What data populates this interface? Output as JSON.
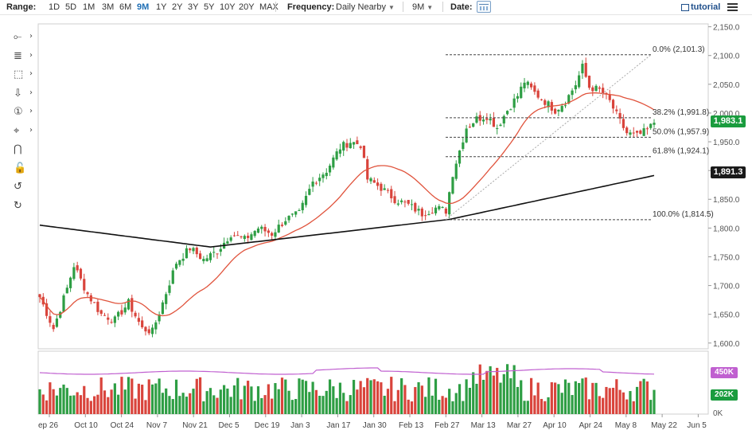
{
  "toolbar": {
    "range_label": "Range:",
    "ranges": [
      "1D",
      "5D",
      "1M",
      "3M",
      "6M",
      "9M",
      "1Y",
      "2Y",
      "3Y",
      "5Y",
      "10Y",
      "20Y",
      "MAX"
    ],
    "active_range": "9M",
    "frequency_label": "Frequency:",
    "frequency_value": "Daily Nearby",
    "period_value": "9M",
    "date_label": "Date:",
    "tutorial_label": "tutorial"
  },
  "drawing_tools": [
    {
      "name": "trendline-tool",
      "icon": "line-dot-icon",
      "glyph": "⟜"
    },
    {
      "name": "fibonacci-tool",
      "icon": "fib-icon",
      "glyph": "≣"
    },
    {
      "name": "rectangle-tool",
      "icon": "rectangle-icon",
      "glyph": "⬚"
    },
    {
      "name": "arrow-tool",
      "icon": "arrow-down-icon",
      "glyph": "⇩"
    },
    {
      "name": "number-tool",
      "icon": "number-circle-icon",
      "glyph": "①"
    },
    {
      "name": "cursor-tool",
      "icon": "crosshair-icon",
      "glyph": "⌖"
    },
    {
      "name": "magnet-tool",
      "icon": "magnet-icon",
      "glyph": "⋂"
    },
    {
      "name": "lock-tool",
      "icon": "lock-icon",
      "glyph": "🔓"
    },
    {
      "name": "undo-tool",
      "icon": "undo-icon",
      "glyph": "↺"
    },
    {
      "name": "redo-tool",
      "icon": "redo-icon",
      "glyph": "↻"
    }
  ],
  "colors": {
    "up": "#2e9e44",
    "down": "#d9443c",
    "ma_fast": "#e0533c",
    "ma_slow": "#111111",
    "fib": "#444444",
    "rsi": "#c060d0",
    "price_badge": "#1a9c3e",
    "ma_badge": "#1a1a1a"
  },
  "chart_data": {
    "type": "candlestick",
    "y_axis_ticks": [
      "2,150.0",
      "2,100.0",
      "2,050.0",
      "2,000.0",
      "1,950.0",
      "1,900.0",
      "1,850.0",
      "1,800.0",
      "1,750.0",
      "1,700.0",
      "1,650.0",
      "1,600.0"
    ],
    "y_tick_values": [
      2150,
      2100,
      2050,
      2000,
      1950,
      1900,
      1850,
      1800,
      1750,
      1700,
      1650,
      1600
    ],
    "ylim": [
      1590,
      2155
    ],
    "x_axis_labels": [
      "ep 26",
      "Oct 10",
      "Oct 24",
      "Nov 7",
      "Nov 21",
      "Dec 5",
      "Dec 19",
      "Jan 3",
      "Jan 17",
      "Jan 30",
      "Feb 13",
      "Feb 27",
      "Mar 13",
      "Mar 27",
      "Apr 10",
      "Apr 24",
      "May 8",
      "May 22",
      "Jun 5"
    ],
    "last_price": "1,983.1",
    "slow_ma_value": "1,891.3",
    "fib_levels": [
      {
        "label": "0.0% (2,101.3)",
        "value": 2101.3
      },
      {
        "label": "38.2% (1,991.8)",
        "value": 1991.8
      },
      {
        "label": "50.0% (1,957.9)",
        "value": 1957.9
      },
      {
        "label": "61.8% (1,924.1)",
        "value": 1924.1
      },
      {
        "label": "100.0% (1,814.5)",
        "value": 1814.5
      }
    ],
    "anchors": [
      [
        0,
        1680
      ],
      [
        4,
        1625
      ],
      [
        8,
        1695
      ],
      [
        10,
        1735
      ],
      [
        14,
        1685
      ],
      [
        18,
        1650
      ],
      [
        22,
        1640
      ],
      [
        26,
        1670
      ],
      [
        30,
        1625
      ],
      [
        33,
        1620
      ],
      [
        36,
        1670
      ],
      [
        40,
        1740
      ],
      [
        44,
        1765
      ],
      [
        48,
        1745
      ],
      [
        52,
        1760
      ],
      [
        56,
        1790
      ],
      [
        60,
        1780
      ],
      [
        64,
        1800
      ],
      [
        68,
        1790
      ],
      [
        72,
        1815
      ],
      [
        76,
        1825
      ],
      [
        80,
        1880
      ],
      [
        84,
        1900
      ],
      [
        88,
        1940
      ],
      [
        91,
        1950
      ],
      [
        94,
        1945
      ],
      [
        96,
        1885
      ],
      [
        100,
        1870
      ],
      [
        104,
        1850
      ],
      [
        108,
        1840
      ],
      [
        112,
        1825
      ],
      [
        116,
        1835
      ],
      [
        119,
        1830
      ],
      [
        121,
        1895
      ],
      [
        125,
        1975
      ],
      [
        128,
        1990
      ],
      [
        131,
        1995
      ],
      [
        134,
        1975
      ],
      [
        137,
        2005
      ],
      [
        140,
        2030
      ],
      [
        142,
        2055
      ],
      [
        145,
        2035
      ],
      [
        148,
        2020
      ],
      [
        151,
        2005
      ],
      [
        154,
        2020
      ],
      [
        157,
        2050
      ],
      [
        159,
        2080
      ],
      [
        161,
        2045
      ],
      [
        164,
        2040
      ],
      [
        167,
        2020
      ],
      [
        170,
        1985
      ],
      [
        172,
        1965
      ],
      [
        175,
        1960
      ],
      [
        178,
        1970
      ],
      [
        180,
        1983.1
      ]
    ],
    "volume_labels": [
      "450K",
      "202K",
      "0K"
    ],
    "volume_note": "daily volume bars with RSI-style oscillator line"
  }
}
